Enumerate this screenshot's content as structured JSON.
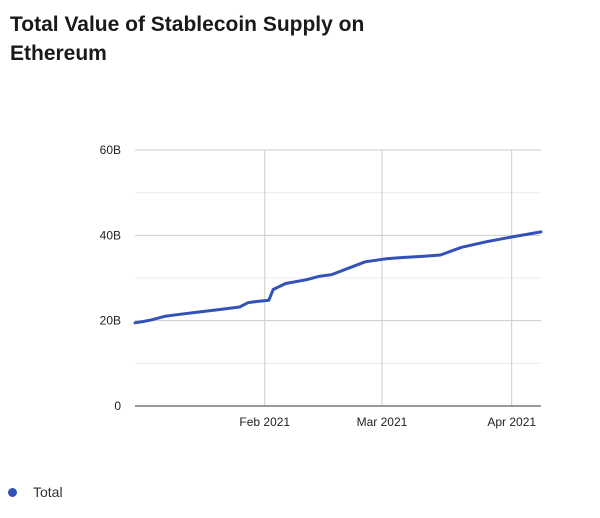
{
  "chart_data": {
    "type": "line",
    "title": "Total Value of Stablecoin Supply on Ethereum",
    "xlabel": "",
    "ylabel": "",
    "x_axis_type": "date",
    "x_range": [
      "2021-01-01",
      "2021-04-08"
    ],
    "ylim": [
      0,
      60000000000
    ],
    "y_ticks": [
      {
        "value": 0,
        "label": "0"
      },
      {
        "value": 20000000000,
        "label": "20B"
      },
      {
        "value": 40000000000,
        "label": "40B"
      },
      {
        "value": 60000000000,
        "label": "60B"
      }
    ],
    "x_ticks": [
      {
        "value": "2021-02-01",
        "label": "Feb 2021"
      },
      {
        "value": "2021-03-01",
        "label": "Mar 2021"
      },
      {
        "value": "2021-04-01",
        "label": "Apr 2021"
      }
    ],
    "grid": {
      "horizontal": true,
      "vertical": true
    },
    "legend_position": "bottom-left",
    "series": [
      {
        "name": "Total",
        "color": "#3352b8",
        "points": [
          {
            "x": "2021-01-01",
            "y": 19500000000
          },
          {
            "x": "2021-01-03",
            "y": 19800000000
          },
          {
            "x": "2021-01-05",
            "y": 20200000000
          },
          {
            "x": "2021-01-08",
            "y": 21000000000
          },
          {
            "x": "2021-01-11",
            "y": 21400000000
          },
          {
            "x": "2021-01-16",
            "y": 22000000000
          },
          {
            "x": "2021-01-21",
            "y": 22600000000
          },
          {
            "x": "2021-01-26",
            "y": 23200000000
          },
          {
            "x": "2021-01-28",
            "y": 24200000000
          },
          {
            "x": "2021-01-30",
            "y": 24500000000
          },
          {
            "x": "2021-02-02",
            "y": 24800000000
          },
          {
            "x": "2021-02-03",
            "y": 27300000000
          },
          {
            "x": "2021-02-06",
            "y": 28700000000
          },
          {
            "x": "2021-02-11",
            "y": 29600000000
          },
          {
            "x": "2021-02-14",
            "y": 30400000000
          },
          {
            "x": "2021-02-17",
            "y": 30800000000
          },
          {
            "x": "2021-02-21",
            "y": 32300000000
          },
          {
            "x": "2021-02-25",
            "y": 33800000000
          },
          {
            "x": "2021-03-02",
            "y": 34500000000
          },
          {
            "x": "2021-03-06",
            "y": 34800000000
          },
          {
            "x": "2021-03-11",
            "y": 35100000000
          },
          {
            "x": "2021-03-15",
            "y": 35400000000
          },
          {
            "x": "2021-03-20",
            "y": 37200000000
          },
          {
            "x": "2021-03-26",
            "y": 38500000000
          },
          {
            "x": "2021-04-01",
            "y": 39600000000
          },
          {
            "x": "2021-04-08",
            "y": 40800000000
          }
        ]
      }
    ]
  }
}
